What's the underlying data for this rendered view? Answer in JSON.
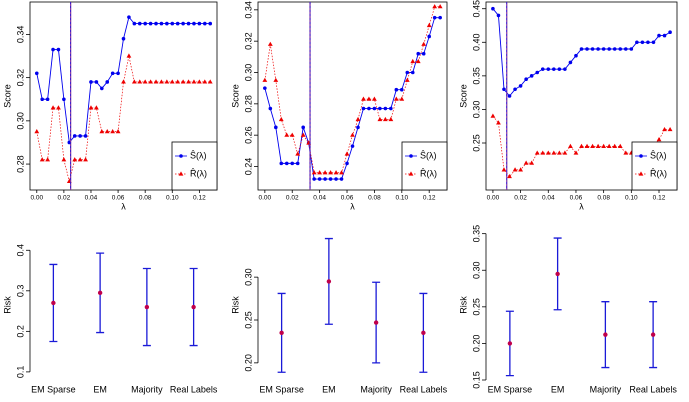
{
  "chart_data": [
    {
      "type": "line",
      "xlabel": "λ",
      "ylabel": "Score",
      "xlim": [
        -0.005,
        0.133
      ],
      "ylim": [
        0.268,
        0.355
      ],
      "xticks": [
        {
          "value": 0,
          "label": "0.00"
        },
        {
          "value": 0.02,
          "label": "0.02"
        },
        {
          "value": 0.04,
          "label": "0.04"
        },
        {
          "value": 0.06,
          "label": "0.06"
        },
        {
          "value": 0.08,
          "label": "0.08"
        },
        {
          "value": 0.1,
          "label": "0.10"
        },
        {
          "value": 0.12,
          "label": "0.12"
        }
      ],
      "yticks": [
        0.28,
        {
          "value": 0.3,
          "label": "0.30"
        },
        0.32,
        0.34
      ],
      "vline": 0.025,
      "vline_color": "#7b2fa0",
      "x": [
        0,
        0.004,
        0.008,
        0.012,
        0.016,
        0.02,
        0.024,
        0.028,
        0.032,
        0.036,
        0.04,
        0.044,
        0.048,
        0.052,
        0.056,
        0.06,
        0.064,
        0.068,
        0.072,
        0.076,
        0.08,
        0.084,
        0.088,
        0.092,
        0.096,
        0.1,
        0.104,
        0.108,
        0.112,
        0.116,
        0.12,
        0.124,
        0.128
      ],
      "series": [
        {
          "name": "Ŝ(λ)",
          "color": "#0000ee",
          "marker": "circle",
          "values": [
            0.322,
            0.31,
            0.31,
            0.333,
            0.333,
            0.31,
            0.29,
            0.293,
            0.293,
            0.293,
            0.318,
            0.318,
            0.315,
            0.318,
            0.322,
            0.322,
            0.338,
            0.348,
            0.345,
            0.345,
            0.345,
            0.345,
            0.345,
            0.345,
            0.345,
            0.345,
            0.345,
            0.345,
            0.345,
            0.345,
            0.345,
            0.345,
            0.345
          ]
        },
        {
          "name": "R̂(λ)",
          "color": "#ee0000",
          "marker": "triangle",
          "values": [
            0.295,
            0.282,
            0.282,
            0.306,
            0.306,
            0.282,
            0.272,
            0.282,
            0.282,
            0.282,
            0.306,
            0.306,
            0.295,
            0.295,
            0.295,
            0.295,
            0.318,
            0.33,
            0.318,
            0.318,
            0.318,
            0.318,
            0.318,
            0.318,
            0.318,
            0.318,
            0.318,
            0.318,
            0.318,
            0.318,
            0.318,
            0.318,
            0.318
          ]
        }
      ]
    },
    {
      "type": "line",
      "xlabel": "λ",
      "ylabel": "Score",
      "xlim": [
        -0.005,
        0.133
      ],
      "ylim": [
        0.225,
        0.345
      ],
      "xticks": [
        {
          "value": 0,
          "label": "0.00"
        },
        {
          "value": 0.02,
          "label": "0.02"
        },
        {
          "value": 0.04,
          "label": "0.04"
        },
        {
          "value": 0.06,
          "label": "0.06"
        },
        {
          "value": 0.08,
          "label": "0.08"
        },
        {
          "value": 0.1,
          "label": "0.10"
        },
        {
          "value": 0.12,
          "label": "0.12"
        }
      ],
      "yticks": [
        0.24,
        0.26,
        0.28,
        {
          "value": 0.3,
          "label": "0.30"
        },
        0.32,
        0.34
      ],
      "vline": 0.033,
      "vline_color": "#7b2fa0",
      "x": [
        0,
        0.004,
        0.008,
        0.012,
        0.016,
        0.02,
        0.024,
        0.028,
        0.032,
        0.036,
        0.04,
        0.044,
        0.048,
        0.052,
        0.056,
        0.06,
        0.064,
        0.068,
        0.072,
        0.076,
        0.08,
        0.084,
        0.088,
        0.092,
        0.096,
        0.1,
        0.104,
        0.108,
        0.112,
        0.116,
        0.12,
        0.124,
        0.128
      ],
      "series": [
        {
          "name": "Ŝ(λ)",
          "color": "#0000ee",
          "marker": "circle",
          "values": [
            0.29,
            0.277,
            0.265,
            0.242,
            0.242,
            0.242,
            0.242,
            0.265,
            0.255,
            0.232,
            0.232,
            0.232,
            0.232,
            0.232,
            0.232,
            0.242,
            0.253,
            0.265,
            0.277,
            0.277,
            0.277,
            0.277,
            0.277,
            0.277,
            0.289,
            0.289,
            0.3,
            0.3,
            0.312,
            0.312,
            0.323,
            0.335,
            0.335
          ]
        },
        {
          "name": "R̂(λ)",
          "color": "#ee0000",
          "marker": "triangle",
          "values": [
            0.295,
            0.318,
            0.295,
            0.27,
            0.26,
            0.26,
            0.248,
            0.26,
            0.255,
            0.236,
            0.236,
            0.236,
            0.236,
            0.236,
            0.236,
            0.248,
            0.26,
            0.27,
            0.283,
            0.283,
            0.283,
            0.27,
            0.27,
            0.27,
            0.283,
            0.283,
            0.295,
            0.307,
            0.307,
            0.318,
            0.33,
            0.342,
            0.342
          ]
        }
      ]
    },
    {
      "type": "line",
      "xlabel": "λ",
      "ylabel": "Score",
      "xlim": [
        -0.005,
        0.133
      ],
      "ylim": [
        0.18,
        0.46
      ],
      "xticks": [
        {
          "value": 0,
          "label": "0.00"
        },
        {
          "value": 0.02,
          "label": "0.02"
        },
        {
          "value": 0.04,
          "label": "0.04"
        },
        {
          "value": 0.06,
          "label": "0.06"
        },
        {
          "value": 0.08,
          "label": "0.08"
        },
        {
          "value": 0.1,
          "label": "0.10"
        },
        {
          "value": 0.12,
          "label": "0.12"
        }
      ],
      "yticks": [
        0.25,
        {
          "value": 0.3,
          "label": "0.30"
        },
        0.35,
        {
          "value": 0.4,
          "label": "0.40"
        },
        0.45
      ],
      "vline": 0.01,
      "vline_color": "#7b2fa0",
      "x": [
        0,
        0.004,
        0.008,
        0.012,
        0.016,
        0.02,
        0.024,
        0.028,
        0.032,
        0.036,
        0.04,
        0.044,
        0.048,
        0.052,
        0.056,
        0.06,
        0.064,
        0.068,
        0.072,
        0.076,
        0.08,
        0.084,
        0.088,
        0.092,
        0.096,
        0.1,
        0.104,
        0.108,
        0.112,
        0.116,
        0.12,
        0.124,
        0.128
      ],
      "series": [
        {
          "name": "Ŝ(λ)",
          "color": "#0000ee",
          "marker": "circle",
          "values": [
            0.45,
            0.44,
            0.33,
            0.32,
            0.33,
            0.335,
            0.345,
            0.35,
            0.355,
            0.36,
            0.36,
            0.36,
            0.36,
            0.36,
            0.37,
            0.38,
            0.39,
            0.39,
            0.39,
            0.39,
            0.39,
            0.39,
            0.39,
            0.39,
            0.39,
            0.39,
            0.4,
            0.4,
            0.4,
            0.4,
            0.41,
            0.41,
            0.415
          ]
        },
        {
          "name": "R̂(λ)",
          "color": "#ee0000",
          "marker": "triangle",
          "values": [
            0.29,
            0.28,
            0.21,
            0.2,
            0.21,
            0.21,
            0.22,
            0.22,
            0.235,
            0.235,
            0.235,
            0.235,
            0.235,
            0.235,
            0.245,
            0.235,
            0.245,
            0.245,
            0.245,
            0.245,
            0.245,
            0.245,
            0.245,
            0.245,
            0.235,
            0.235,
            0.245,
            0.245,
            0.245,
            0.245,
            0.255,
            0.27,
            0.27
          ]
        }
      ]
    },
    {
      "type": "errorbar",
      "ylabel": "Risk",
      "ylim": [
        0.08,
        0.45
      ],
      "yticks": [
        0.1,
        0.2,
        0.3,
        0.4
      ],
      "color": "#1a1ad8",
      "point_color": "#c0004a",
      "categories": [
        "EM Sparse",
        "EM",
        "Majority",
        "Real Labels"
      ],
      "values": [
        0.27,
        0.295,
        0.26,
        0.26
      ],
      "errors": [
        0.095,
        0.098,
        0.095,
        0.095
      ]
    },
    {
      "type": "errorbar",
      "ylabel": "Risk",
      "ylim": [
        0.18,
        0.355
      ],
      "yticks": [
        {
          "value": 0.2,
          "label": "0.20"
        },
        0.25,
        {
          "value": 0.3,
          "label": "0.30"
        }
      ],
      "color": "#1a1ad8",
      "point_color": "#c0004a",
      "categories": [
        "EM Sparse",
        "EM",
        "Majority",
        "Real Labels"
      ],
      "values": [
        0.235,
        0.295,
        0.247,
        0.235
      ],
      "errors": [
        0.046,
        0.05,
        0.047,
        0.046
      ]
    },
    {
      "type": "errorbar",
      "ylabel": "Risk",
      "ylim": [
        0.15,
        0.355
      ],
      "yticks": [
        0.15,
        {
          "value": 0.2,
          "label": "0.20"
        },
        0.25,
        {
          "value": 0.3,
          "label": "0.30"
        },
        0.35
      ],
      "color": "#1a1ad8",
      "point_color": "#c0004a",
      "categories": [
        "EM Sparse",
        "EM",
        "Majority",
        "Real Labels"
      ],
      "values": [
        0.2,
        0.295,
        0.212,
        0.212
      ],
      "errors": [
        0.044,
        0.049,
        0.045,
        0.045
      ]
    }
  ]
}
